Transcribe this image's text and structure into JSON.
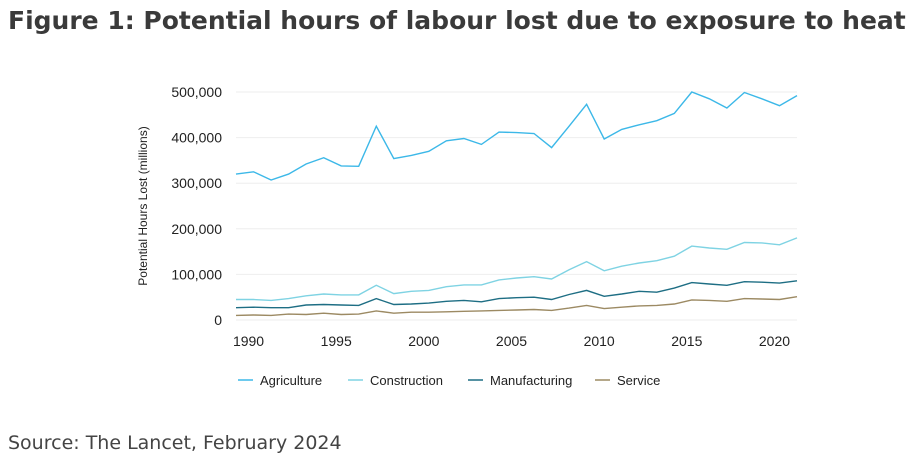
{
  "title": "Figure 1: Potential hours of labour lost due to exposure to heat",
  "source": "Source: The Lancet, February 2024",
  "chart_data": {
    "type": "line",
    "title": "Figure 1: Potential hours of labour lost due to exposure to heat",
    "xlabel": "",
    "ylabel": "Potential Hours Lost (millions)",
    "ylim": [
      0,
      500000
    ],
    "xlim": [
      1989,
      2021
    ],
    "grid": true,
    "legend": "bottom",
    "x_ticks": [
      1990,
      1995,
      2000,
      2005,
      2010,
      2015,
      2020
    ],
    "y_ticks": [
      0,
      100000,
      200000,
      300000,
      400000,
      500000
    ],
    "y_tick_labels": [
      "0",
      "100,000",
      "200,000",
      "300,000",
      "400,000",
      "500,000"
    ],
    "x": [
      1989,
      1990,
      1991,
      1992,
      1993,
      1994,
      1995,
      1996,
      1997,
      1998,
      1999,
      2000,
      2001,
      2002,
      2003,
      2004,
      2005,
      2006,
      2007,
      2008,
      2009,
      2010,
      2011,
      2012,
      2013,
      2014,
      2015,
      2016,
      2017,
      2018,
      2019,
      2020,
      2021
    ],
    "series": [
      {
        "name": "Agriculture",
        "color": "#3cb8e8",
        "values": [
          320000,
          325000,
          307000,
          320000,
          342000,
          356000,
          338000,
          337000,
          425000,
          354000,
          361000,
          370000,
          393000,
          398000,
          385000,
          412000,
          411000,
          409000,
          378000,
          425000,
          473000,
          397000,
          418000,
          428000,
          437000,
          453000,
          500000,
          485000,
          465000,
          499000,
          485000,
          470000,
          492000
        ]
      },
      {
        "name": "Construction",
        "color": "#7fd3e3",
        "values": [
          45000,
          45000,
          43000,
          47000,
          53000,
          57000,
          55000,
          55000,
          76000,
          58000,
          63000,
          65000,
          73000,
          77000,
          77000,
          88000,
          92000,
          95000,
          90000,
          110000,
          128000,
          108000,
          118000,
          125000,
          130000,
          140000,
          162000,
          158000,
          155000,
          170000,
          169000,
          165000,
          180000
        ]
      },
      {
        "name": "Manufacturing",
        "color": "#1e6e84",
        "values": [
          27000,
          28000,
          27000,
          27000,
          33000,
          34000,
          33000,
          32000,
          47000,
          34000,
          35000,
          37000,
          41000,
          43000,
          40000,
          47000,
          49000,
          50000,
          45000,
          56000,
          65000,
          52000,
          57000,
          63000,
          61000,
          70000,
          82000,
          79000,
          76000,
          84000,
          83000,
          81000,
          86000
        ]
      },
      {
        "name": "Service",
        "color": "#9c8a63",
        "values": [
          10000,
          11000,
          10000,
          13000,
          12000,
          15000,
          12000,
          13000,
          20000,
          15000,
          17000,
          17000,
          18000,
          19000,
          20000,
          21000,
          22000,
          23000,
          21000,
          26000,
          32000,
          25000,
          28000,
          31000,
          32000,
          35000,
          44000,
          43000,
          41000,
          47000,
          46000,
          45000,
          51000
        ]
      }
    ]
  }
}
